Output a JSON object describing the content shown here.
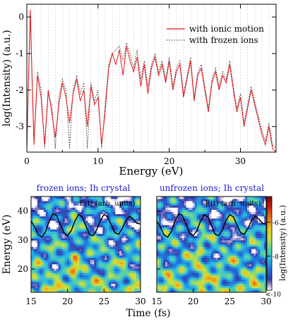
{
  "chart_data": [
    {
      "type": "line",
      "xlabel": "Energy (eV)",
      "ylabel": "log(Intensity) (a.u.)",
      "xlim": [
        0,
        35
      ],
      "ylim": [
        -3.7,
        0.35
      ],
      "xticks": [
        0,
        10,
        20,
        30
      ],
      "yticks": [
        -3,
        -2,
        -1,
        0
      ],
      "legend_position": "top-right",
      "series": [
        {
          "name": "with ionic motion",
          "color": "#e8141a",
          "style": "solid",
          "x": [
            0.0,
            0.3,
            0.5,
            0.7,
            1.0,
            1.5,
            2.0,
            2.5,
            3.0,
            3.5,
            4.0,
            4.5,
            5.0,
            5.5,
            6.0,
            6.5,
            7.0,
            7.5,
            8.0,
            8.5,
            9.0,
            9.5,
            10.0,
            10.5,
            11.0,
            11.5,
            12.0,
            12.5,
            13.0,
            13.5,
            14.0,
            14.5,
            15.0,
            15.5,
            16.0,
            16.5,
            17.0,
            17.5,
            18.0,
            18.5,
            19.0,
            19.5,
            20.0,
            20.5,
            21.0,
            21.5,
            22.0,
            22.5,
            23.0,
            23.5,
            24.0,
            24.5,
            25.0,
            25.5,
            26.0,
            26.5,
            27.0,
            27.5,
            28.0,
            28.5,
            29.0,
            29.5,
            30.0,
            30.5,
            31.0,
            31.5,
            32.0,
            32.5,
            33.0,
            33.5,
            34.0,
            34.5,
            35.0
          ],
          "y": [
            -3.6,
            -1.2,
            0.2,
            -1.5,
            -3.5,
            -1.6,
            -2.2,
            -3.5,
            -2.0,
            -2.6,
            -3.3,
            -2.4,
            -1.8,
            -2.2,
            -2.9,
            -2.1,
            -1.7,
            -2.3,
            -2.0,
            -3.0,
            -1.9,
            -2.4,
            -2.2,
            -3.5,
            -2.6,
            -1.4,
            -1.0,
            -1.3,
            -0.9,
            -1.6,
            -0.8,
            -1.2,
            -1.5,
            -1.1,
            -1.9,
            -1.3,
            -2.1,
            -1.4,
            -1.1,
            -1.6,
            -1.3,
            -1.8,
            -1.2,
            -2.0,
            -1.5,
            -1.3,
            -2.2,
            -1.7,
            -1.2,
            -2.3,
            -1.6,
            -1.4,
            -2.0,
            -2.6,
            -1.8,
            -1.5,
            -2.0,
            -1.6,
            -1.8,
            -1.3,
            -2.0,
            -2.6,
            -2.2,
            -3.0,
            -2.5,
            -2.0,
            -2.4,
            -2.8,
            -3.2,
            -3.5,
            -3.0,
            -3.6,
            -3.7
          ]
        },
        {
          "name": "with frozen ions",
          "color": "#333333",
          "style": "dotted",
          "x": [
            0.0,
            0.5,
            1.0,
            1.5,
            2.0,
            2.5,
            3.0,
            3.5,
            4.0,
            4.5,
            5.0,
            5.5,
            6.0,
            6.5,
            7.0,
            7.5,
            8.0,
            8.5,
            9.0,
            9.5,
            10.0,
            10.5,
            11.0,
            11.5,
            12.0,
            12.5,
            13.0,
            13.5,
            14.0,
            14.5,
            15.0,
            15.5,
            16.0,
            16.5,
            17.0,
            17.5,
            18.0,
            18.5,
            19.0,
            19.5,
            20.0,
            20.5,
            21.0,
            21.5,
            22.0,
            22.5,
            23.0,
            23.5,
            24.0,
            24.5,
            25.0,
            25.5,
            26.0,
            26.5,
            27.0,
            27.5,
            28.0,
            28.5,
            29.0,
            29.5,
            30.0,
            30.5,
            31.0,
            31.5,
            32.0,
            32.5,
            33.0,
            33.5,
            34.0,
            34.5,
            35.0
          ],
          "y": [
            -3.6,
            0.1,
            -3.4,
            -1.5,
            -2.0,
            -3.6,
            -2.1,
            -2.4,
            -3.6,
            -2.2,
            -1.7,
            -2.0,
            -3.6,
            -2.0,
            -1.6,
            -2.1,
            -1.8,
            -3.6,
            -1.8,
            -2.3,
            -2.0,
            -3.6,
            -2.4,
            -1.3,
            -1.0,
            -0.9,
            -0.8,
            -1.2,
            -0.7,
            -1.0,
            -1.4,
            -0.9,
            -1.7,
            -1.2,
            -1.9,
            -1.3,
            -1.0,
            -1.5,
            -1.2,
            -1.7,
            -1.1,
            -1.9,
            -1.4,
            -1.2,
            -2.1,
            -1.6,
            -1.1,
            -2.2,
            -1.5,
            -1.3,
            -1.9,
            -2.5,
            -1.7,
            -1.4,
            -1.9,
            -1.5,
            -1.7,
            -1.2,
            -1.9,
            -2.5,
            -2.1,
            -2.9,
            -2.4,
            -1.9,
            -2.3,
            -2.7,
            -3.1,
            -3.4,
            -2.9,
            -3.5,
            -3.6
          ]
        }
      ]
    },
    {
      "type": "heatmap",
      "title": "frozen ions; Ih crystal",
      "inset_label": "E(t) (arb. units)",
      "xlabel": "Time (fs)",
      "ylabel": "Energy (eV)",
      "xlim": [
        15,
        30
      ],
      "ylim": [
        12,
        45
      ],
      "xticks": [
        15,
        20,
        25,
        30
      ],
      "yticks": [
        20,
        30,
        40
      ],
      "overlay_curve": {
        "x": [
          15.0,
          15.5,
          16.0,
          16.5,
          17.0,
          17.5,
          18.0,
          18.5,
          19.0,
          19.5,
          20.0,
          20.5,
          21.0,
          21.5,
          22.0,
          22.5,
          23.0,
          23.5,
          24.0,
          24.5,
          25.0,
          25.5,
          26.0,
          26.5,
          27.0,
          27.5,
          28.0,
          28.5,
          29.0,
          29.5,
          30.0
        ],
        "y": [
          36.5,
          34.5,
          31.8,
          31.0,
          33.0,
          36.5,
          39.0,
          38.5,
          35.5,
          32.5,
          31.5,
          33.2,
          36.5,
          38.8,
          38.0,
          35.0,
          32.0,
          31.5,
          33.5,
          36.8,
          38.8,
          38.0,
          35.2,
          32.5,
          32.0,
          34.0,
          36.8,
          38.2,
          37.2,
          35.8,
          35.5
        ]
      }
    },
    {
      "type": "heatmap",
      "title": "unfrozen ions; Ih crystal",
      "inset_label": "E(t) (arb. units)",
      "xlabel": "Time (fs)",
      "ylabel": "",
      "xlim": [
        15,
        30
      ],
      "ylim": [
        12,
        45
      ],
      "xticks": [
        15,
        20,
        25,
        30
      ],
      "yticks": [
        20,
        30,
        40
      ],
      "overlay_curve": {
        "x": [
          15.0,
          15.5,
          16.0,
          16.5,
          17.0,
          17.5,
          18.0,
          18.5,
          19.0,
          19.5,
          20.0,
          20.5,
          21.0,
          21.5,
          22.0,
          22.5,
          23.0,
          23.5,
          24.0,
          24.5,
          25.0,
          25.5,
          26.0,
          26.5,
          27.0,
          27.5,
          28.0,
          28.5,
          29.0,
          29.5,
          30.0
        ],
        "y": [
          36.5,
          34.5,
          31.8,
          31.0,
          33.0,
          36.5,
          39.0,
          38.5,
          35.5,
          32.5,
          31.5,
          33.2,
          36.5,
          38.8,
          38.0,
          35.0,
          32.0,
          31.5,
          33.5,
          36.8,
          38.8,
          38.0,
          35.2,
          32.5,
          32.0,
          34.0,
          36.8,
          38.2,
          37.2,
          35.8,
          35.5
        ]
      }
    }
  ],
  "colorbar": {
    "label": "log(Intensity) (a.u.)",
    "range": [
      -10,
      -4.5
    ],
    "ticks": [
      -6,
      -8
    ],
    "bottom_label": "<-10",
    "colors": [
      "#ffffff",
      "#3a3aa8",
      "#1f6fd8",
      "#29b8e8",
      "#5fd0a0",
      "#c8e040",
      "#f0c020",
      "#e87018",
      "#c82010",
      "#7a0a0a"
    ]
  }
}
